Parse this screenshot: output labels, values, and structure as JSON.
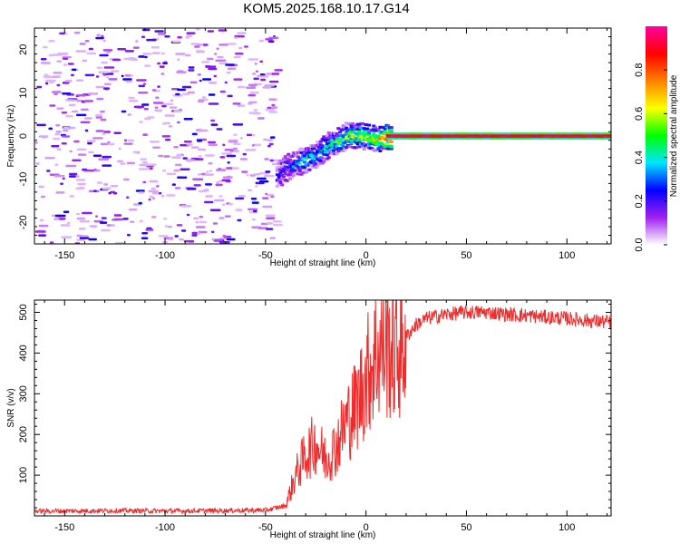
{
  "title": "KOM5.2025.168.10.17.G14",
  "chart_data": [
    {
      "type": "heatmap",
      "xlabel": "Height of straight line (km)",
      "ylabel": "Frequency (Hz)",
      "xlim": [
        -165,
        122
      ],
      "ylim": [
        -25,
        25
      ],
      "x_ticks": [
        -150,
        -100,
        -50,
        0,
        50,
        100
      ],
      "x_tick_labels": [
        "-150",
        "-100",
        "-50",
        "0",
        "50",
        "100"
      ],
      "y_ticks": [
        -20,
        -10,
        0,
        10,
        20
      ],
      "y_tick_labels": [
        "-20",
        "-10",
        "0",
        "10",
        "20"
      ],
      "colorbar": {
        "label": "Normalized spectral amplitude",
        "range": [
          0,
          1
        ],
        "ticks": [
          0.0,
          0.2,
          0.4,
          0.6,
          0.8
        ],
        "tick_labels": [
          "0.0",
          "0.2",
          "0.4",
          "0.6",
          "0.8"
        ],
        "colors": [
          "#ffffff",
          "#a020f0",
          "#0000ff",
          "#00e5ff",
          "#00ff00",
          "#ffff00",
          "#ff8000",
          "#ff0000",
          "#ff00a0"
        ]
      },
      "ridge": [
        {
          "x": -45,
          "f": -9,
          "a": 0.2
        },
        {
          "x": -40,
          "f": -7,
          "a": 0.25
        },
        {
          "x": -35,
          "f": -6,
          "a": 0.3
        },
        {
          "x": -30,
          "f": -5,
          "a": 0.35
        },
        {
          "x": -25,
          "f": -4,
          "a": 0.35
        },
        {
          "x": -20,
          "f": -2,
          "a": 0.4
        },
        {
          "x": -15,
          "f": -1,
          "a": 0.45
        },
        {
          "x": -10,
          "f": 0.5,
          "a": 0.5
        },
        {
          "x": -5,
          "f": 0.5,
          "a": 0.55
        },
        {
          "x": 0,
          "f": 0,
          "a": 0.6
        },
        {
          "x": 5,
          "f": -0.5,
          "a": 0.6
        },
        {
          "x": 10,
          "f": 0,
          "a": 0.9
        },
        {
          "x": 122,
          "f": 0,
          "a": 0.95
        }
      ],
      "grid": false
    },
    {
      "type": "line",
      "xlabel": "Height of straight line (km)",
      "ylabel": "SNR (v/v)",
      "xlim": [
        -165,
        122
      ],
      "ylim": [
        0,
        530
      ],
      "x_ticks": [
        -150,
        -100,
        -50,
        0,
        50,
        100
      ],
      "x_tick_labels": [
        "-150",
        "-100",
        "-50",
        "0",
        "50",
        "100"
      ],
      "y_ticks": [
        100,
        200,
        300,
        400,
        500
      ],
      "y_tick_labels": [
        "100",
        "200",
        "300",
        "400",
        "500"
      ],
      "series_color": "#ee2c2c",
      "x": [
        -165,
        -150,
        -125,
        -100,
        -75,
        -50,
        -40,
        -35,
        -30,
        -25,
        -20,
        -15,
        -10,
        -5,
        0,
        5,
        10,
        15,
        20,
        25,
        30,
        40,
        50,
        60,
        70,
        80,
        90,
        100,
        110,
        122
      ],
      "y": [
        12,
        12,
        13,
        12,
        13,
        14,
        25,
        100,
        150,
        180,
        140,
        170,
        230,
        270,
        340,
        400,
        420,
        400,
        440,
        470,
        485,
        495,
        500,
        500,
        495,
        492,
        488,
        485,
        480,
        475
      ],
      "grid": false
    }
  ]
}
